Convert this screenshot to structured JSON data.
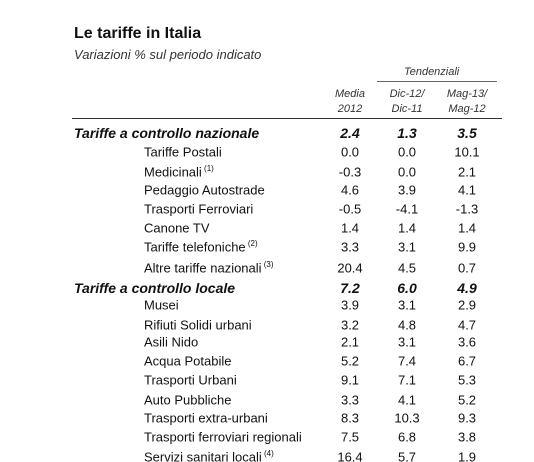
{
  "header": {
    "title": "Le tariffe in Italia",
    "subtitle": "Variazioni % sul periodo indicato"
  },
  "table": {
    "group_label": "Tendenziali",
    "columns": [
      {
        "line1": "Media",
        "line2": "2012"
      },
      {
        "line1": "Dic-12/",
        "line2": "Dic-11"
      },
      {
        "line1": "Mag-13/",
        "line2": "Mag-12"
      }
    ],
    "rows": [
      {
        "label": "Tariffe a controllo nazionale",
        "note": "",
        "values": [
          "2.4",
          "1.3",
          "3.5"
        ],
        "section": true
      },
      {
        "label": "Tariffe Postali",
        "note": "",
        "values": [
          "0.0",
          "0.0",
          "10.1"
        ],
        "section": false
      },
      {
        "label": "Medicinali",
        "note": "(1)",
        "values": [
          "-0.3",
          "0.0",
          "2.1"
        ],
        "section": false
      },
      {
        "label": "Pedaggio Autostrade",
        "note": "",
        "values": [
          "4.6",
          "3.9",
          "4.1"
        ],
        "section": false
      },
      {
        "label": "Trasporti Ferroviari",
        "note": "",
        "values": [
          "-0.5",
          "-4.1",
          "-1.3"
        ],
        "section": false
      },
      {
        "label": "Canone TV",
        "note": "",
        "values": [
          "1.4",
          "1.4",
          "1.4"
        ],
        "section": false
      },
      {
        "label": "Tariffe telefoniche",
        "note": "(2)",
        "values": [
          "3.3",
          "3.1",
          "9.9"
        ],
        "section": false
      },
      {
        "label": "Altre tariffe nazionali",
        "note": "(3)",
        "values": [
          "20.4",
          "4.5",
          "0.7"
        ],
        "section": false
      },
      {
        "label": "Tariffe a controllo locale",
        "note": "",
        "values": [
          "7.2",
          "6.0",
          "4.9"
        ],
        "section": true
      },
      {
        "label": "Musei",
        "note": "",
        "values": [
          "3.9",
          "3.1",
          "2.9"
        ],
        "section": false
      },
      {
        "label": "Rifiuti Solidi urbani",
        "note": "",
        "values": [
          "3.2",
          "4.8",
          "4.7"
        ],
        "section": false
      },
      {
        "label": "Asili Nido",
        "note": "",
        "values": [
          "2.1",
          "3.1",
          "3.6"
        ],
        "section": false
      },
      {
        "label": "Acqua Potabile",
        "note": "",
        "values": [
          "5.2",
          "7.4",
          "6.7"
        ],
        "section": false
      },
      {
        "label": "Trasporti Urbani",
        "note": "",
        "values": [
          "9.1",
          "7.1",
          "5.3"
        ],
        "section": false
      },
      {
        "label": "Auto Pubbliche",
        "note": "",
        "values": [
          "3.3",
          "4.1",
          "5.2"
        ],
        "section": false
      },
      {
        "label": "Trasporti extra-urbani",
        "note": "",
        "values": [
          "8.3",
          "10.3",
          "9.3"
        ],
        "section": false
      },
      {
        "label": "Trasporti ferroviari regionali",
        "note": "",
        "values": [
          "7.5",
          "6.8",
          "3.8"
        ],
        "section": false
      },
      {
        "label": "Servizi sanitari locali",
        "note": "(4)",
        "values": [
          "16.4",
          "5.7",
          "1.9"
        ],
        "section": false
      }
    ]
  }
}
